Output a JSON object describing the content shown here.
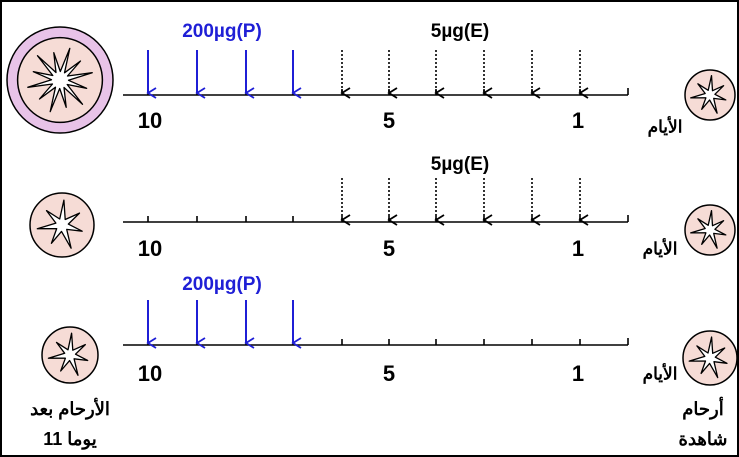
{
  "rows": [
    {
      "p_label": "200µg(P)",
      "e_label": "5µg(E)",
      "ticks": [
        "10",
        "5",
        "1"
      ],
      "axis_label": "الأيام"
    },
    {
      "e_label": "5µg(E)",
      "ticks": [
        "10",
        "5",
        "1"
      ],
      "axis_label": "الأيام"
    },
    {
      "p_label": "200µg(P)",
      "ticks": [
        "10",
        "5",
        "1"
      ],
      "axis_label": "الأيام"
    }
  ],
  "captions": {
    "left": [
      "الأرحام بعد",
      "11 يوما"
    ],
    "right": [
      "أرحام",
      "شاهدة"
    ]
  }
}
